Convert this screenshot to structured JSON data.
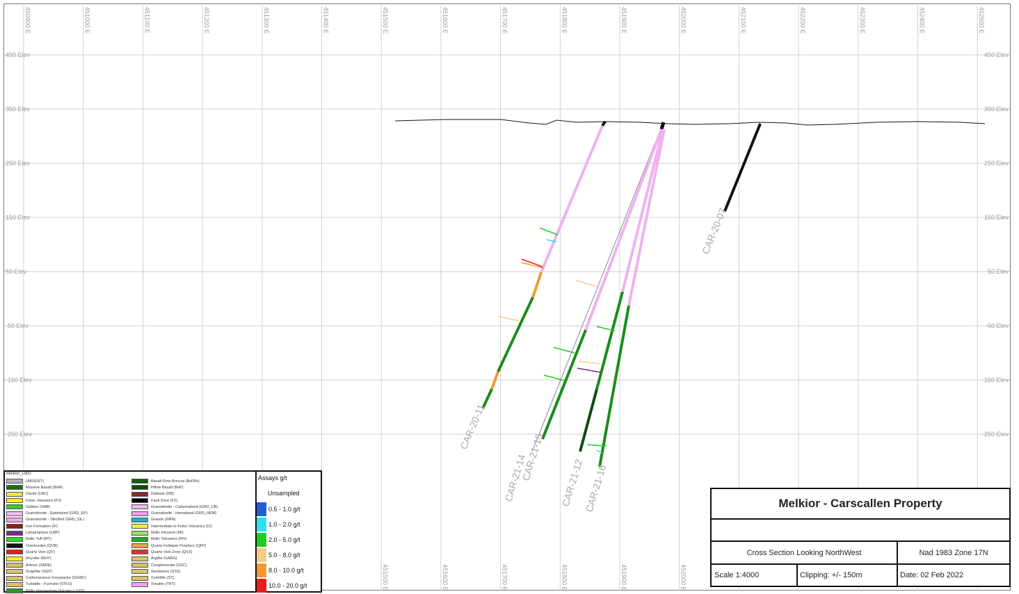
{
  "eastings": [
    "450900 E",
    "451000 E",
    "451100 E",
    "451200 E",
    "451300 E",
    "451400 E",
    "451500 E",
    "451600 E",
    "451700 E",
    "451800 E",
    "451900 E",
    "452000 E",
    "452100 E",
    "452200 E",
    "452300 E",
    "452400 E",
    "452500 E"
  ],
  "elevations": [
    "450 Elev",
    "350 Elev",
    "250 Elev",
    "150 Elev",
    "50 Elev",
    "-50 Elev",
    "-150 Elev",
    "-250 Elev"
  ],
  "drill_holes": [
    "CAR-20-11",
    "CAR-21-14",
    "CAR-21-15",
    "CAR-21-12",
    "CAR-21-16",
    "CAR-20-07"
  ],
  "legend": {
    "lithology_title": "Melkior_Litho",
    "lithology": [
      {
        "label": "(ABSENT)",
        "color": "#b3b3b3"
      },
      {
        "label": "Massive Basalt (BsM)",
        "color": "#1a6e1a"
      },
      {
        "label": "Dacite (DAC)",
        "color": "#e9e650"
      },
      {
        "label": "Felsic Volcanics (FV)",
        "color": "#f4f21a"
      },
      {
        "label": "Gabbro (GAB)",
        "color": "#33cc33"
      },
      {
        "label": "Granodiorite - Epidotized (GRD_EP)",
        "color": "#f0b8f0"
      },
      {
        "label": "Granodiorite - Silicified (GRD_SIL)",
        "color": "#f3a6e8"
      },
      {
        "label": "Iron Formation (IF)",
        "color": "#8b1c1c"
      },
      {
        "label": "Lamprophyre (LMP)",
        "color": "#7a2a8a"
      },
      {
        "label": "Mafic Tuff (MT)",
        "color": "#22dd22"
      },
      {
        "label": "Overburden (OVB)",
        "color": "#111111"
      },
      {
        "label": "Quartz Vein (QV)",
        "color": "#e02020"
      },
      {
        "label": "Rhyolite (RHY)",
        "color": "#f5f020"
      },
      {
        "label": "Arkose (SARK)",
        "color": "#d8c070"
      },
      {
        "label": "Graphite (SGP)",
        "color": "#d8c070"
      },
      {
        "label": "Carbonaceous Greywacke (SGWC)",
        "color": "#d8c070"
      },
      {
        "label": "Turbidite - Fuchsite (STFU)",
        "color": "#d8c070"
      },
      {
        "label": "Mafic Intermediate Volcanics (VID)",
        "color": "#2a9a2a"
      },
      {
        "label": "Basalt Flow Breccia (BsFBx)",
        "color": "#145c14"
      },
      {
        "label": "Pillow Basalt (BsP)",
        "color": "#0d4d0d"
      },
      {
        "label": "Diabase (DB)",
        "color": "#8a2a2a"
      },
      {
        "label": "Fault Zone (FZ)",
        "color": "#050505"
      },
      {
        "label": "Granodiorite - Carbonatized (GRD_CB)",
        "color": "#f0b8f0"
      },
      {
        "label": "Granodiorite - Hematized (GRD_HEM)",
        "color": "#eaa0ea"
      },
      {
        "label": "Granite (GRN)",
        "color": "#22aacc"
      },
      {
        "label": "Intermediate to Felsic Volcanics (IV)",
        "color": "#eeee44"
      },
      {
        "label": "Mafic Intrusive (MI)",
        "color": "#99dd66"
      },
      {
        "label": "Mafic Volcanics (MV)",
        "color": "#22aa22"
      },
      {
        "label": "Quartz Feldspar Porphyry (QFP)",
        "color": "#e8a050"
      },
      {
        "label": "Quartz Vein Zone (QVZ)",
        "color": "#e03030"
      },
      {
        "label": "Argilite (SARG)",
        "color": "#d8c070"
      },
      {
        "label": "Conglomerate (SGC)",
        "color": "#d8c070"
      },
      {
        "label": "Sandstone (SSS)",
        "color": "#d8c070"
      },
      {
        "label": "Turbidite (ST)",
        "color": "#d8c070"
      },
      {
        "label": "Tonalite (TNT)",
        "color": "#f0a0f0"
      }
    ],
    "assays_title": "Assays g/t",
    "unsampled": "Unsampled",
    "assays": [
      {
        "label": "0.5 - 1.0 g/t",
        "color": "#1f5fd6"
      },
      {
        "label": "1.0 - 2.0 g/t",
        "color": "#27e3f0"
      },
      {
        "label": "2.0 - 5.0 g/t",
        "color": "#22cc22"
      },
      {
        "label": "5.0 - 8.0 g/t",
        "color": "#f4cf8a"
      },
      {
        "label": "8.0 - 10.0 g/t",
        "color": "#f29a2e"
      },
      {
        "label": "10.0 - 20.0 g/t",
        "color": "#ee1c1c"
      }
    ]
  },
  "title_block": {
    "title": "Melkior - Carscallen Property",
    "view": "Cross Section Looking NorthWest",
    "datum": "Nad 1983 Zone 17N",
    "scale": "Scale 1:4000",
    "clipping": "Clipping: +/- 150m",
    "date": "Date: 02 Feb 2022"
  },
  "colors": {
    "pink": "#f0b0f0",
    "green": "#1a8c1a",
    "dark_green": "#0d4d0d",
    "overburden": "#111111",
    "grid": "#cfcfcf"
  }
}
